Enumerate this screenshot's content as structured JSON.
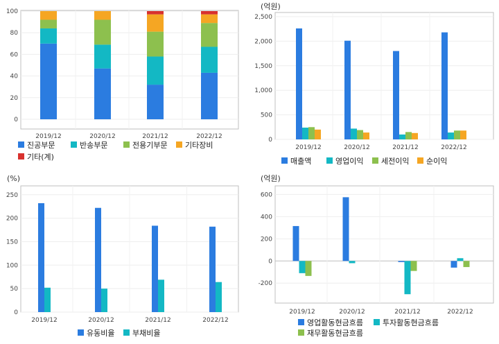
{
  "chart_data": [
    {
      "type": "bar",
      "stacked": true,
      "categories": [
        "2019/12",
        "2020/12",
        "2021/12",
        "2022/12"
      ],
      "ylim": [
        0,
        100
      ],
      "yticks": [
        "0",
        "20",
        "40",
        "60",
        "80",
        "100"
      ],
      "ytick_values": [
        0,
        20,
        40,
        60,
        80,
        100
      ],
      "unit": "",
      "legend_position": "bottom",
      "series": [
        {
          "name": "진공부문",
          "color": "#2b7ce0",
          "values": [
            70,
            47,
            32,
            43
          ]
        },
        {
          "name": "반송부문",
          "color": "#13b8c4",
          "values": [
            14,
            22,
            26,
            24
          ]
        },
        {
          "name": "전용기부문",
          "color": "#8dc04e",
          "values": [
            8,
            23,
            23,
            22
          ]
        },
        {
          "name": "기타장비",
          "color": "#f5a623",
          "values": [
            8,
            8,
            16,
            8
          ]
        },
        {
          "name": "기타(계)",
          "color": "#d8312e",
          "values": [
            0,
            0,
            3,
            3
          ]
        }
      ]
    },
    {
      "type": "bar",
      "categories": [
        "2019/12",
        "2020/12",
        "2021/12",
        "2022/12"
      ],
      "ylim": [
        0,
        2500
      ],
      "yticks": [
        "0",
        "500",
        "1,000",
        "1,500",
        "2,000",
        "2,500"
      ],
      "ytick_values": [
        0,
        500,
        1000,
        1500,
        2000,
        2500
      ],
      "unit": "(억원)",
      "legend_position": "bottom",
      "series": [
        {
          "name": "매출액",
          "color": "#2b7ce0",
          "values": [
            2260,
            2010,
            1800,
            2180
          ]
        },
        {
          "name": "영업이익",
          "color": "#13b8c4",
          "values": [
            240,
            220,
            100,
            140
          ]
        },
        {
          "name": "세전이익",
          "color": "#8dc04e",
          "values": [
            250,
            190,
            150,
            180
          ]
        },
        {
          "name": "순이익",
          "color": "#f5a623",
          "values": [
            200,
            140,
            130,
            180
          ]
        }
      ]
    },
    {
      "type": "bar",
      "categories": [
        "2019/12",
        "2020/12",
        "2021/12",
        "2022/12"
      ],
      "ylim": [
        0,
        260
      ],
      "yticks": [
        "0",
        "50",
        "100",
        "150",
        "200",
        "250"
      ],
      "ytick_values": [
        0,
        50,
        100,
        150,
        200,
        250
      ],
      "unit": "(%)",
      "legend_position": "bottom",
      "series": [
        {
          "name": "유동비율",
          "color": "#2b7ce0",
          "values": [
            232,
            222,
            184,
            182
          ]
        },
        {
          "name": "부채비율",
          "color": "#13b8c4",
          "values": [
            52,
            50,
            69,
            64
          ]
        }
      ]
    },
    {
      "type": "bar",
      "categories": [
        "2019/12",
        "2020/12",
        "2021/12",
        "2022/12"
      ],
      "ylim": [
        -380,
        640
      ],
      "yticks": [
        "-200",
        "0",
        "200",
        "400",
        "600"
      ],
      "ytick_values": [
        -200,
        0,
        200,
        400,
        600
      ],
      "unit": "(억원)",
      "legend_position": "bottom",
      "series": [
        {
          "name": "영업활동현금흐름",
          "color": "#2b7ce0",
          "values": [
            315,
            575,
            -10,
            -60
          ]
        },
        {
          "name": "투자활동현금흐름",
          "color": "#13b8c4",
          "values": [
            -110,
            -20,
            -300,
            25
          ]
        },
        {
          "name": "재무활동현금흐름",
          "color": "#8dc04e",
          "values": [
            -135,
            0,
            -90,
            -55
          ]
        }
      ]
    }
  ]
}
